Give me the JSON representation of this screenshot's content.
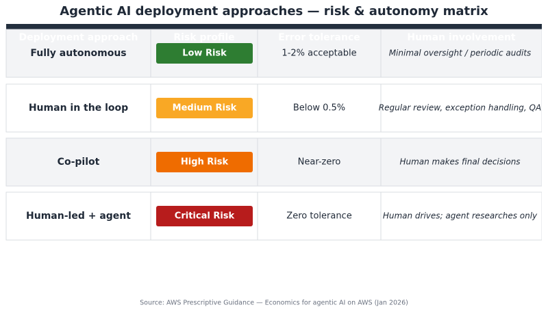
{
  "title": "Agentic AI deployment approaches — risk & autonomy matrix",
  "table": {
    "columns": [
      "Deployment approach",
      "Risk profile",
      "Error tolerance",
      "Human involvement"
    ],
    "rows": [
      {
        "approach": "Fully autonomous",
        "risk": "Low Risk",
        "risk_color": "#2e7d32",
        "error_tolerance": "1-2% acceptable",
        "human_involvement": "Minimal oversight / periodic audits"
      },
      {
        "approach": "Human in the loop",
        "risk": "Medium Risk",
        "risk_color": "#f9a825",
        "error_tolerance": "Below 0.5%",
        "human_involvement": "Regular review, exception handling, QA"
      },
      {
        "approach": "Co-pilot",
        "risk": "High Risk",
        "risk_color": "#ef6c00",
        "error_tolerance": "Near-zero",
        "human_involvement": "Human makes final decisions"
      },
      {
        "approach": "Human-led + agent",
        "risk": "Critical Risk",
        "risk_color": "#b71c1c",
        "error_tolerance": "Zero tolerance",
        "human_involvement": "Human drives; agent researches only"
      }
    ]
  },
  "source": "Source: AWS Prescriptive Guidance — Economics for agentic AI on AWS (Jan 2026)"
}
